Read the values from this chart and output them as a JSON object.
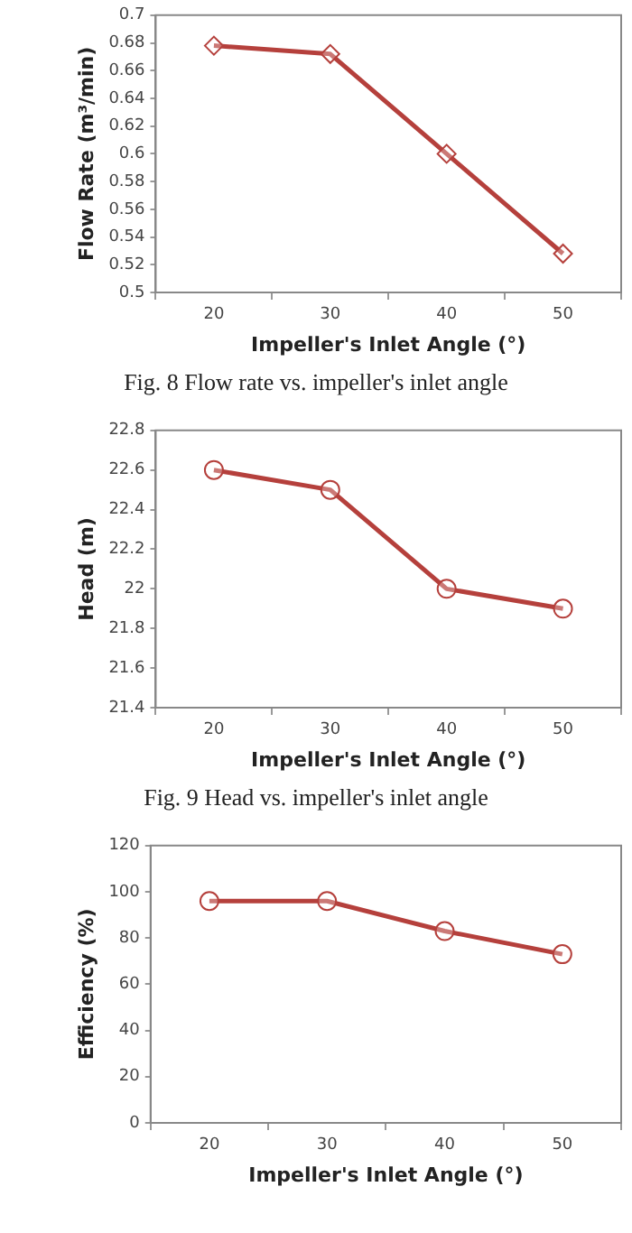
{
  "chart_data": [
    {
      "type": "line",
      "categories": [
        "20",
        "30",
        "40",
        "50"
      ],
      "xlabel": "Impeller's Inlet Angle (°)",
      "ylabel": "Flow Rate (m³/min)",
      "series": [
        {
          "color": "#b5403c",
          "values": [
            0.678,
            0.672,
            0.6,
            0.528
          ]
        }
      ],
      "ylim": [
        0.5,
        0.7
      ],
      "yticks": [
        0.5,
        0.52,
        0.54,
        0.56,
        0.58,
        0.6,
        0.62,
        0.64,
        0.66,
        0.68,
        0.7
      ],
      "marker": "diamond",
      "legend": false,
      "annotations": [
        "Fig. 8 Flow rate vs. impeller's inlet angle"
      ]
    },
    {
      "type": "line",
      "categories": [
        "20",
        "30",
        "40",
        "50"
      ],
      "xlabel": "Impeller's Inlet Angle (°)",
      "ylabel": "Head (m)",
      "series": [
        {
          "color": "#b5403c",
          "values": [
            22.6,
            22.5,
            22.0,
            21.9
          ]
        }
      ],
      "ylim": [
        21.4,
        22.8
      ],
      "yticks": [
        21.4,
        21.6,
        21.8,
        22,
        22.2,
        22.4,
        22.6,
        22.8
      ],
      "marker": "circle",
      "legend": false,
      "annotations": [
        "Fig. 9 Head vs. impeller's inlet angle"
      ]
    },
    {
      "type": "line",
      "categories": [
        "20",
        "30",
        "40",
        "50"
      ],
      "xlabel": "Impeller's Inlet Angle (°)",
      "ylabel": "Efficiency (%)",
      "series": [
        {
          "color": "#b5403c",
          "values": [
            96,
            96,
            83,
            73
          ]
        }
      ],
      "ylim": [
        0,
        120
      ],
      "yticks": [
        0,
        20,
        40,
        60,
        80,
        100,
        120
      ],
      "marker": "circle",
      "legend": false
    }
  ]
}
